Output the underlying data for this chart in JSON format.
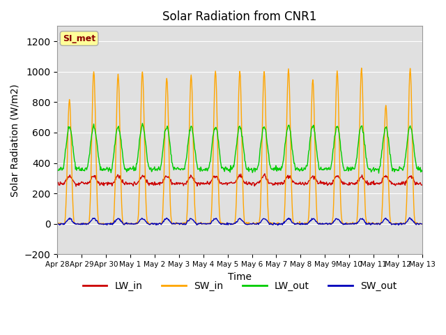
{
  "title": "Solar Radiation from CNR1",
  "xlabel": "Time",
  "ylabel": "Solar Radiation (W/m2)",
  "ylim": [
    -200,
    1300
  ],
  "yticks": [
    -200,
    0,
    200,
    400,
    600,
    800,
    1000,
    1200
  ],
  "background_color": "#ffffff",
  "plot_bg_color": "#e0e0e0",
  "line_colors": {
    "LW_in": "#cc0000",
    "SW_in": "#ffa500",
    "LW_out": "#00cc00",
    "SW_out": "#0000bb"
  },
  "legend_label": "SI_met",
  "legend_label_color": "#8b0000",
  "legend_label_bg": "#ffff99",
  "num_days": 15,
  "date_labels": [
    "Apr 28",
    "Apr 29",
    "Apr 30",
    "May 1",
    "May 2",
    "May 3",
    "May 4",
    "May 5",
    "May 6",
    "May 7",
    "May 8",
    "May 9",
    "May 10",
    "May 11",
    "May 12",
    "May 13"
  ],
  "line_width": 1.0
}
